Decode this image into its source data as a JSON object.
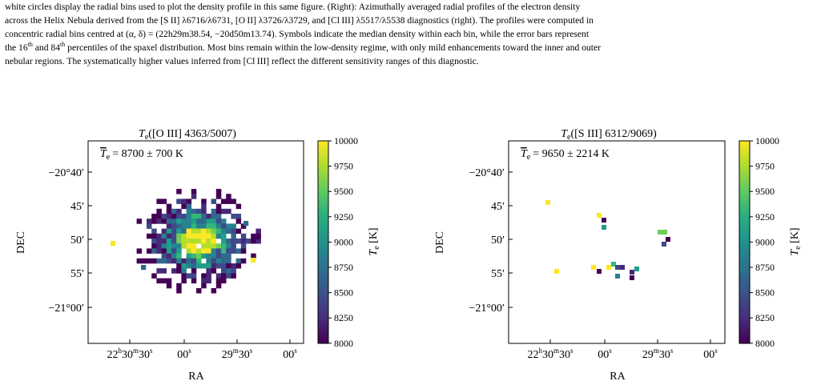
{
  "caption": {
    "line1": "white circles display the radial bins used to plot the density profile in this same figure. (Right): Azimuthally averaged radial profiles of the electron density",
    "line2": "across the Helix Nebula derived from the [S II] λ6716/λ6731, [O II] λ3726/λ3729, and [Cl III] λ5517/λ5538 diagnostics (right). The profiles were computed in",
    "line3": "concentric radial bins centred at (α, δ) = (22h29m38.54, −20d50m13.74). Symbols indicate the median density within each bin, while the error bars represent",
    "line4_part1": "the 16",
    "line4_sup1": "th",
    "line4_part2": " and 84",
    "line4_sup2": "th",
    "line4_part3": " percentiles of the spaxel distribution. Most bins remain within the low-density regime, with only mild enhancements toward the inner and outer",
    "line5": "nebular regions. The systematically higher values inferred from [Cl III]  reflect the different sensitivity ranges of this diagnostic."
  },
  "chart_data": [
    {
      "type": "heatmap",
      "title": "Te([O III] 4363/5007)",
      "title_math": "([O III] 4363/5007)",
      "annotation": "= 8700 ± 700 K",
      "xlabel": "RA",
      "ylabel": "DEC",
      "xticks": [
        "22h30m30s",
        "00s",
        "29m30s",
        "00s"
      ],
      "yticks": [
        "−20°40′",
        "45′",
        "50′",
        "55′",
        "−21°00′"
      ],
      "colorbar_label": "Te [K]",
      "colorbar_ticks": [
        10000,
        9750,
        9500,
        9250,
        9000,
        8750,
        8500,
        8250,
        8000
      ],
      "clim": [
        8000,
        10000
      ],
      "colormap": "viridis",
      "mean_Te_K": 8700,
      "sigma_Te_K": 700
    },
    {
      "type": "heatmap",
      "title": "Te([S III] 6312/9069)",
      "title_math": "([S III] 6312/9069)",
      "annotation": "= 9650 ± 2214 K",
      "xlabel": "RA",
      "ylabel": "DEC",
      "xticks": [
        "22h30m30s",
        "00s",
        "29m30s",
        "00s"
      ],
      "yticks": [
        "−20°40′",
        "45′",
        "50′",
        "55′",
        "−21°00′"
      ],
      "colorbar_label": "Te [K]",
      "colorbar_ticks": [
        10000,
        9750,
        9500,
        9250,
        9000,
        8750,
        8500,
        8250,
        8000
      ],
      "clim": [
        8000,
        10000
      ],
      "colormap": "viridis",
      "mean_Te_K": 9650,
      "sigma_Te_K": 2214
    }
  ],
  "colors": {
    "viridis_low": "#440154",
    "viridis_q1": "#3b528b",
    "viridis_mid": "#21918c",
    "viridis_q3": "#5ec962",
    "viridis_high": "#fde725"
  }
}
